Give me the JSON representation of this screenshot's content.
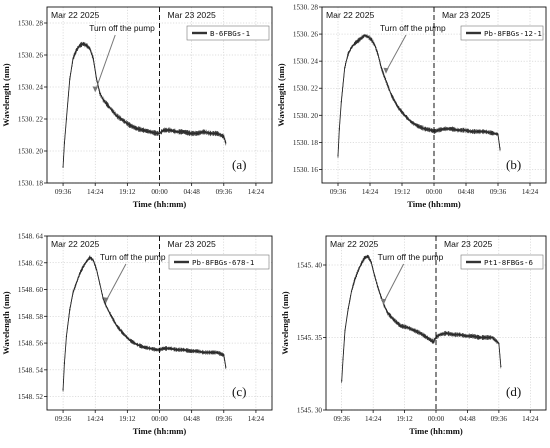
{
  "chart_data": [
    {
      "type": "line",
      "panel_label": "(a)",
      "ylabel": "Wavelength (nm)",
      "xlabel": "Time (hh:mm)",
      "yticks": [
        1530.18,
        1530.2,
        1530.22,
        1530.24,
        1530.26,
        1530.28
      ],
      "ytick_labels": [
        "1530. 18",
        "1530. 20",
        "1530. 22",
        "1530. 24",
        "1530. 26",
        "1530. 28"
      ],
      "ylim": [
        1530.18,
        1530.29
      ],
      "xticks": [
        0,
        4.8,
        9.6,
        14.4,
        19.2,
        24,
        28.8
      ],
      "xtick_labels": [
        "09:36",
        "14:24",
        "19:12",
        "00:00",
        "04:48",
        "09:36",
        "14:24"
      ],
      "xlim": [
        -2.4,
        31.2
      ],
      "grid": true,
      "date_labels": [
        "Mar 22 2025",
        "Mar 23 2025"
      ],
      "divider_x": 14.4,
      "annotation": {
        "text": "Turn off the pump",
        "x": 4.8,
        "y": 1530.236
      },
      "legend": "B-6FBGs-1",
      "series": [
        {
          "name": "B-6FBGs-1",
          "x": [
            0,
            0.2,
            0.5,
            1,
            1.5,
            2,
            2.5,
            3,
            3.5,
            4,
            4.5,
            5,
            5.5,
            6,
            7,
            8,
            9,
            10,
            11,
            12,
            13,
            14,
            14.4,
            15,
            16,
            17,
            18,
            19,
            20,
            21,
            22,
            23,
            24,
            24.3
          ],
          "y": [
            1530.19,
            1530.205,
            1530.22,
            1530.245,
            1530.258,
            1530.263,
            1530.266,
            1530.267,
            1530.266,
            1530.264,
            1530.258,
            1530.245,
            1530.236,
            1530.232,
            1530.227,
            1530.222,
            1530.219,
            1530.216,
            1530.214,
            1530.213,
            1530.212,
            1530.211,
            1530.211,
            1530.213,
            1530.213,
            1530.212,
            1530.212,
            1530.211,
            1530.211,
            1530.212,
            1530.211,
            1530.211,
            1530.209,
            1530.205
          ],
          "band": 0.0024
        }
      ]
    },
    {
      "type": "line",
      "panel_label": "(b)",
      "ylabel": "Wavelength (nm)",
      "xlabel": "Time (hh:mm)",
      "yticks": [
        1530.16,
        1530.18,
        1530.2,
        1530.22,
        1530.24,
        1530.26,
        1530.28
      ],
      "ytick_labels": [
        "1530. 16",
        "1530. 18",
        "1530. 20",
        "1530. 22",
        "1530. 24",
        "1530. 26",
        "1530. 28"
      ],
      "ylim": [
        1530.15,
        1530.28
      ],
      "xticks": [
        0,
        4.8,
        9.6,
        14.4,
        19.2,
        24,
        28.8
      ],
      "xtick_labels": [
        "09:36",
        "14:24",
        "19:12",
        "00:00",
        "04:48",
        "09:36",
        "14:24"
      ],
      "xlim": [
        -2.4,
        31.2
      ],
      "grid": true,
      "date_labels": [
        "Mar 22 2025",
        "Mar 23 2025"
      ],
      "divider_x": 14.4,
      "annotation": {
        "text": "Turn off the pump",
        "x": 7.2,
        "y": 1530.23
      },
      "legend": "Pb-8FBGs-12-1",
      "series": [
        {
          "name": "Pb-8FBGs-12-1",
          "x": [
            0,
            0.2,
            0.5,
            1,
            1.5,
            2,
            2.5,
            3,
            3.5,
            4,
            4.5,
            5,
            5.5,
            6,
            6.5,
            7,
            8,
            9,
            10,
            11,
            12,
            13,
            14,
            14.4,
            15,
            16,
            17,
            18,
            19,
            20,
            21,
            22,
            23,
            24,
            24.3
          ],
          "y": [
            1530.17,
            1530.19,
            1530.21,
            1530.235,
            1530.245,
            1530.25,
            1530.253,
            1530.255,
            1530.257,
            1530.259,
            1530.258,
            1530.256,
            1530.252,
            1530.245,
            1530.235,
            1530.228,
            1530.215,
            1530.206,
            1530.2,
            1530.195,
            1530.192,
            1530.19,
            1530.189,
            1530.188,
            1530.189,
            1530.19,
            1530.19,
            1530.189,
            1530.189,
            1530.188,
            1530.188,
            1530.188,
            1530.187,
            1530.186,
            1530.175
          ],
          "band": 0.0026
        }
      ]
    },
    {
      "type": "line",
      "panel_label": "(c)",
      "ylabel": "Wavelength (nm)",
      "xlabel": "Time (hh:mm)",
      "yticks": [
        1548.52,
        1548.54,
        1548.56,
        1548.58,
        1548.6,
        1548.62,
        1548.64
      ],
      "ytick_labels": [
        "1548. 52",
        "1548. 54",
        "1548. 56",
        "1548. 58",
        "1548. 60",
        "1548. 62",
        "1548. 64"
      ],
      "ylim": [
        1548.51,
        1548.64
      ],
      "xticks": [
        0,
        4.8,
        9.6,
        14.4,
        19.2,
        24,
        28.8
      ],
      "xtick_labels": [
        "09:36",
        "14:24",
        "19:12",
        "00:00",
        "04:48",
        "09:36",
        "14:24"
      ],
      "xlim": [
        -2.4,
        31.2
      ],
      "grid": true,
      "date_labels": [
        "Mar 22 2025",
        "Mar 23 2025"
      ],
      "divider_x": 14.4,
      "annotation": {
        "text": "Turn off the pump",
        "x": 6.4,
        "y": 1548.589
      },
      "legend": "Pb-8FBGs-678-1",
      "series": [
        {
          "name": "Pb-8FBGs-678-1",
          "x": [
            0,
            0.2,
            0.5,
            1,
            1.5,
            2,
            2.5,
            3,
            3.5,
            4,
            4.5,
            5,
            5.5,
            6,
            6.5,
            7,
            8,
            9,
            10,
            11,
            12,
            13,
            14,
            14.4,
            15,
            16,
            17,
            18,
            19,
            20,
            21,
            22,
            23,
            24,
            24.3
          ],
          "y": [
            1548.525,
            1548.545,
            1548.565,
            1548.585,
            1548.598,
            1548.605,
            1548.612,
            1548.617,
            1548.621,
            1548.624,
            1548.622,
            1548.615,
            1548.604,
            1548.593,
            1548.587,
            1548.582,
            1548.573,
            1548.567,
            1548.562,
            1548.559,
            1548.557,
            1548.556,
            1548.555,
            1548.555,
            1548.556,
            1548.556,
            1548.555,
            1548.555,
            1548.554,
            1548.554,
            1548.553,
            1548.553,
            1548.553,
            1548.551,
            1548.542
          ],
          "band": 0.0024
        }
      ]
    },
    {
      "type": "line",
      "panel_label": "(d)",
      "ylabel": "Wavelength (nm)",
      "xlabel": "Time (hh:mm)",
      "yticks": [
        1545.3,
        1545.35,
        1545.4
      ],
      "ytick_labels": [
        "1545. 30",
        "1545. 35",
        "1545. 40"
      ],
      "ylim": [
        1545.3,
        1545.42
      ],
      "xticks": [
        0,
        4.8,
        9.6,
        14.4,
        19.2,
        24,
        28.8
      ],
      "xtick_labels": [
        "09:36",
        "14:24",
        "19:12",
        "00:00",
        "04:48",
        "09:36",
        "14:24"
      ],
      "xlim": [
        -2.4,
        31.2
      ],
      "grid": true,
      "date_labels": [
        "Mar 22 2025",
        "Mar 23 2025"
      ],
      "divider_x": 14.4,
      "annotation": {
        "text": "Turn off the pump",
        "x": 6.4,
        "y": 1545.372
      },
      "legend": "Pt1-8FBGs-6",
      "series": [
        {
          "name": "Pt1-8FBGs-6",
          "x": [
            0,
            0.2,
            0.5,
            1,
            1.5,
            2,
            2.5,
            3,
            3.5,
            4,
            4.5,
            5,
            5.5,
            6,
            6.5,
            7,
            8,
            9,
            10,
            11,
            12,
            13,
            14,
            14.4,
            15,
            16,
            17,
            18,
            19,
            20,
            21,
            22,
            23,
            24,
            24.3
          ],
          "y": [
            1545.32,
            1545.335,
            1545.355,
            1545.37,
            1545.382,
            1545.39,
            1545.396,
            1545.401,
            1545.405,
            1545.406,
            1545.402,
            1545.393,
            1545.385,
            1545.378,
            1545.372,
            1545.367,
            1545.362,
            1545.358,
            1545.357,
            1545.355,
            1545.353,
            1545.35,
            1545.347,
            1545.35,
            1545.352,
            1545.353,
            1545.352,
            1545.352,
            1545.351,
            1545.351,
            1545.35,
            1545.35,
            1545.35,
            1545.346,
            1545.33
          ],
          "band": 0.0024
        }
      ]
    }
  ]
}
